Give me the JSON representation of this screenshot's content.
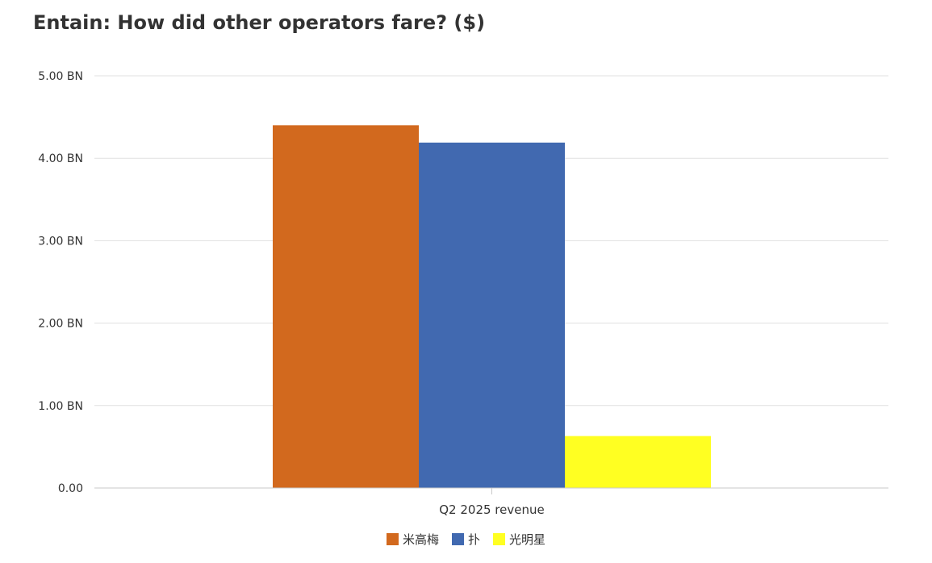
{
  "title": "Entain: How did other operators fare? ($)",
  "colors": {
    "grid": "#e0e0e0",
    "axis": "#c8c8c8",
    "text": "#333333"
  },
  "chart_data": {
    "type": "bar",
    "title": "Entain: How did other operators fare? ($)",
    "categories": [
      "Q2 2025 revenue"
    ],
    "series": [
      {
        "name": "米高梅",
        "values": [
          4.4
        ],
        "color": "#d2691e"
      },
      {
        "name": "扑",
        "values": [
          4.19
        ],
        "color": "#4169b0"
      },
      {
        "name": "光明星",
        "values": [
          0.63
        ],
        "color": "#ffff22"
      }
    ],
    "unit": "BN",
    "ylim": [
      0,
      5
    ],
    "yticks": [
      {
        "value": 0,
        "label": "0.00"
      },
      {
        "value": 1,
        "label": "1.00 BN"
      },
      {
        "value": 2,
        "label": "2.00 BN"
      },
      {
        "value": 3,
        "label": "3.00 BN"
      },
      {
        "value": 4,
        "label": "4.00 BN"
      },
      {
        "value": 5,
        "label": "5.00 BN"
      }
    ],
    "xlabel": "",
    "ylabel": "",
    "grid": true,
    "legend": "bottom-center"
  }
}
